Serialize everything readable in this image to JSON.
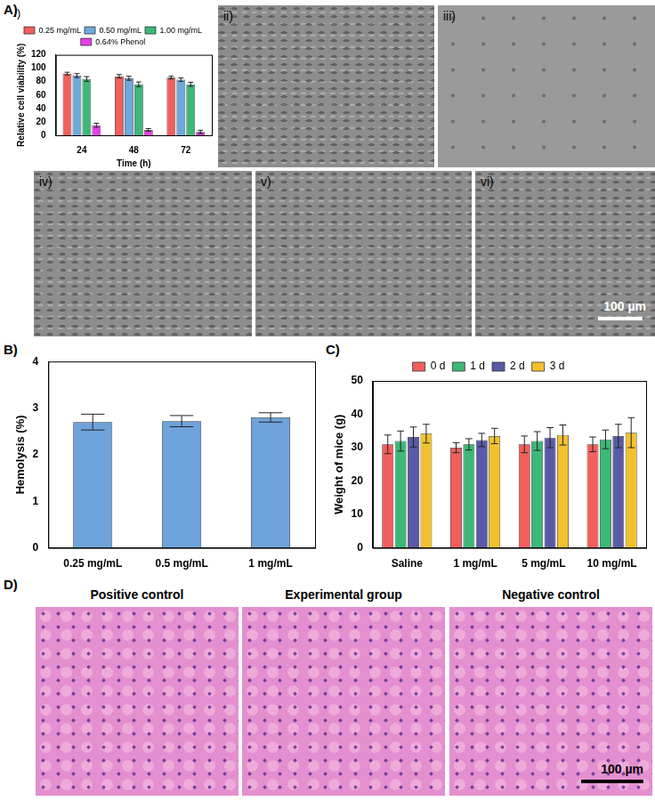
{
  "chart_data": [
    {
      "type": "bar",
      "title": "i)",
      "x_label": "Time (h)",
      "y_label": "Relative cell viability (%)",
      "categories": [
        "24",
        "48",
        "72"
      ],
      "series": [
        {
          "name": "0.25 mg/mL",
          "color": "#f25f5c",
          "values": [
            92,
            88,
            86
          ],
          "errors": [
            2,
            2.5,
            2
          ]
        },
        {
          "name": "0.50 mg/mL",
          "color": "#6fa8dc",
          "values": [
            89,
            85,
            83
          ],
          "errors": [
            3,
            3,
            2.5
          ]
        },
        {
          "name": "1.00 mg/mL",
          "color": "#3cb878",
          "values": [
            84,
            76,
            76
          ],
          "errors": [
            3.5,
            3.5,
            3
          ]
        },
        {
          "name": "0.64% Phenol",
          "color": "#e83ee8",
          "values": [
            15,
            8,
            5
          ],
          "errors": [
            3,
            2,
            2.5
          ]
        }
      ],
      "ylim": [
        0,
        120
      ],
      "yticks": [
        0,
        20,
        40,
        60,
        80,
        100,
        120
      ],
      "grid": false,
      "legend": "top"
    },
    {
      "type": "bar",
      "y_label": "Hemolysis (%)",
      "categories": [
        "0.25 mg/mL",
        "0.5 mg/mL",
        "1 mg/mL"
      ],
      "values": [
        2.7,
        2.72,
        2.8
      ],
      "errors": [
        0.17,
        0.12,
        0.1
      ],
      "color": "#6fa3dc",
      "ylim": [
        0,
        4
      ],
      "yticks": [
        0,
        1,
        2,
        3,
        4
      ],
      "grid": false
    },
    {
      "type": "bar",
      "y_label": "Weight of mice (g)",
      "categories": [
        "Saline",
        "1 mg/mL",
        "5 mg/mL",
        "10 mg/mL"
      ],
      "series": [
        {
          "name": "0 d",
          "color": "#f25f5c",
          "values": [
            31,
            30,
            31,
            31
          ],
          "errors": [
            2.8,
            1.5,
            2.5,
            2.2
          ]
        },
        {
          "name": "1 d",
          "color": "#3cb878",
          "values": [
            32,
            31,
            32,
            32.5
          ],
          "errors": [
            3,
            1.7,
            2.8,
            2.8
          ]
        },
        {
          "name": "2 d",
          "color": "#5a5aa8",
          "values": [
            33.2,
            32.3,
            33,
            33.5
          ],
          "errors": [
            3,
            2,
            3,
            3.5
          ]
        },
        {
          "name": "3 d",
          "color": "#f2c12e",
          "values": [
            34.2,
            33.5,
            33.8,
            34.5
          ],
          "errors": [
            2.8,
            2.3,
            3,
            4.5
          ]
        }
      ],
      "ylim": [
        0,
        50
      ],
      "yticks": [
        0,
        10,
        20,
        30,
        40,
        50
      ],
      "grid": false,
      "legend": "top"
    }
  ],
  "panel_labels": [
    "A)",
    "B)",
    "C)",
    "D)"
  ],
  "micrographs": {
    "labels": [
      "ii)",
      "iii)",
      "iv)",
      "v)",
      "vi)"
    ],
    "scale_bar": "100 µm"
  },
  "histology": {
    "titles": [
      "Positive control",
      "Experimental group",
      "Negative control"
    ],
    "scale_bar": "100 µm"
  }
}
